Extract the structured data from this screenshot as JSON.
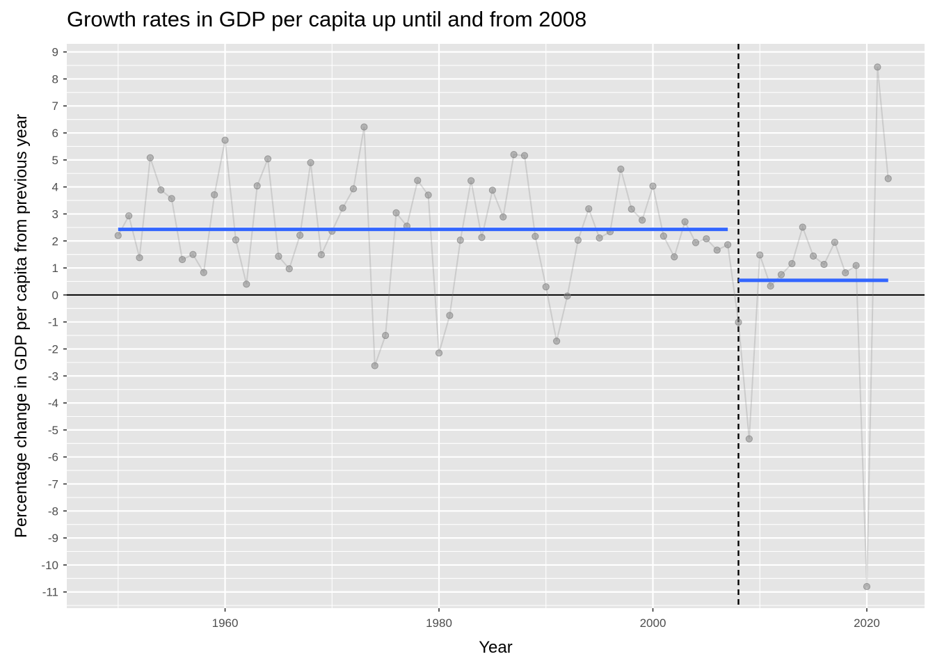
{
  "chart_data": {
    "type": "line",
    "title": "Growth rates in GDP per capita up until and from 2008",
    "xlabel": "Year",
    "ylabel": "Percentage change in GDP per capita from previous year",
    "xlim": [
      1945.2,
      2025.4
    ],
    "ylim": [
      -11.6,
      9.3
    ],
    "x_ticks": [
      "1960",
      "1980",
      "2000",
      "2020"
    ],
    "y_ticks": [
      "9",
      "8",
      "7",
      "6",
      "5",
      "4",
      "3",
      "2",
      "1",
      "0",
      "-1",
      "-2",
      "-3",
      "-4",
      "-5",
      "-6",
      "-7",
      "-8",
      "-9",
      "-10",
      "-11"
    ],
    "grid": true,
    "series": [
      {
        "x": [
          1950,
          1951,
          1952,
          1953,
          1954,
          1955,
          1956,
          1957,
          1958,
          1959,
          1960,
          1961,
          1962,
          1963,
          1964,
          1965,
          1966,
          1967,
          1968,
          1969,
          1970,
          1971,
          1972,
          1973,
          1974,
          1975,
          1976,
          1977,
          1978,
          1979,
          1980,
          1981,
          1982,
          1983,
          1984,
          1985,
          1986,
          1987,
          1988,
          1989,
          1990,
          1991,
          1992,
          1993,
          1994,
          1995,
          1996,
          1997,
          1998,
          1999,
          2000,
          2001,
          2002,
          2003,
          2004,
          2005,
          2006,
          2007,
          2008,
          2009,
          2010,
          2011,
          2012,
          2013,
          2014,
          2015,
          2016,
          2017,
          2018,
          2019,
          2020,
          2021,
          2022
        ],
        "values": [
          2.2,
          2.93,
          1.38,
          5.08,
          3.89,
          3.57,
          1.31,
          1.5,
          0.83,
          3.71,
          5.73,
          2.04,
          0.4,
          4.04,
          5.04,
          1.43,
          0.97,
          2.21,
          4.9,
          1.49,
          2.36,
          3.22,
          3.93,
          6.22,
          -2.62,
          -1.5,
          3.04,
          2.55,
          4.24,
          3.7,
          -2.15,
          -0.76,
          2.03,
          4.23,
          2.13,
          3.88,
          2.89,
          5.2,
          5.16,
          2.17,
          0.3,
          -1.71,
          -0.04,
          2.03,
          3.19,
          2.11,
          2.34,
          4.66,
          3.18,
          2.77,
          4.03,
          2.18,
          1.41,
          2.71,
          1.94,
          2.08,
          1.66,
          1.86,
          -1.01,
          -5.33,
          1.48,
          0.33,
          0.75,
          1.16,
          2.51,
          1.44,
          1.13,
          1.95,
          0.82,
          1.09,
          -10.8,
          8.44,
          4.31
        ],
        "color": "#808080"
      }
    ],
    "reference_lines": {
      "horizontal_zero_y": 0,
      "vertical_dashed_x": 2008
    },
    "mean_segments": [
      {
        "x_start": 1950,
        "x_end": 2007,
        "value": 2.43
      },
      {
        "x_start": 2008,
        "x_end": 2022,
        "value": 0.54
      }
    ],
    "colors": {
      "panel_background": "#e5e5e5",
      "grid": "#ffffff",
      "points": "#808080",
      "mean_line": "#3366ff",
      "reference": "#000000"
    }
  }
}
